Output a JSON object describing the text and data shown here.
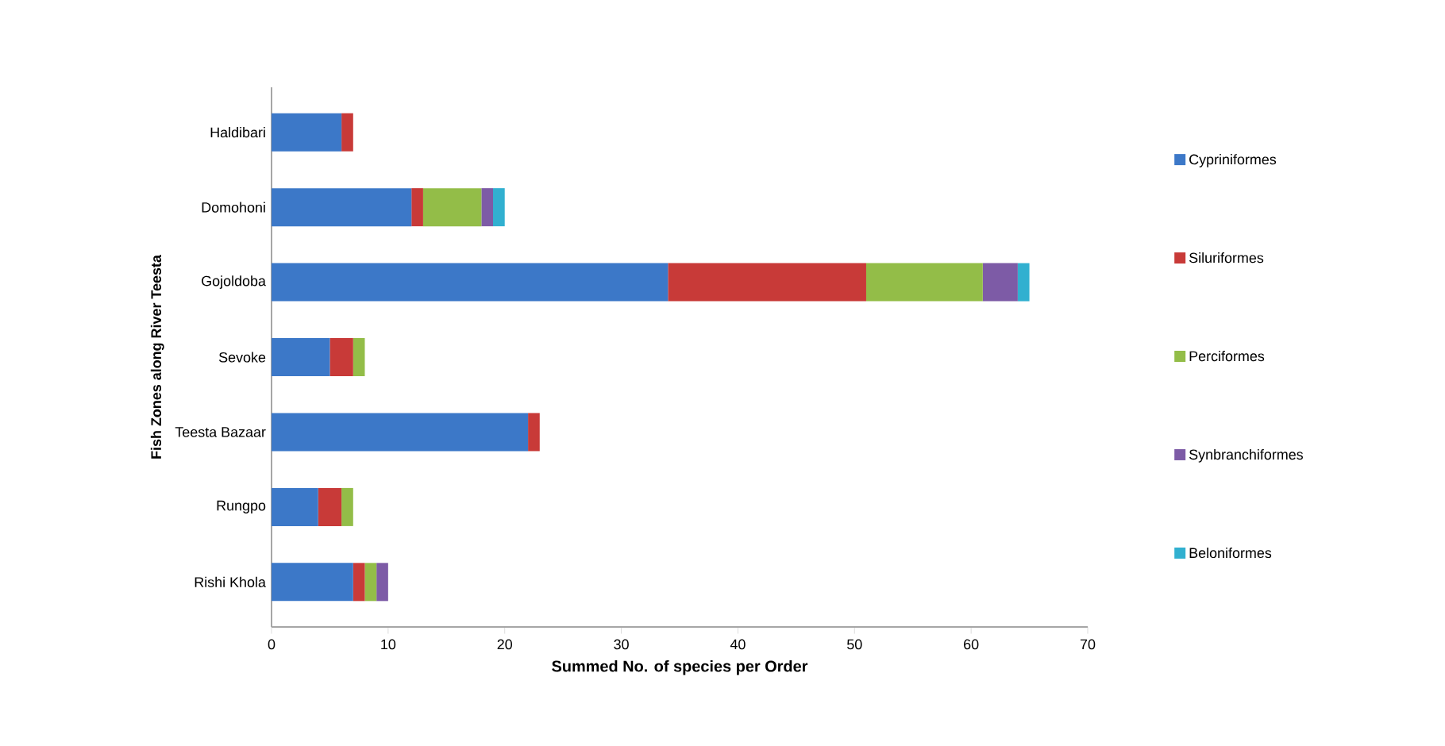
{
  "chart_data": {
    "type": "bar",
    "orientation": "horizontal",
    "stacked": true,
    "categories": [
      "Haldibari",
      "Domohoni",
      "Gojoldoba",
      "Sevoke",
      "Teesta Bazaar",
      "Rungpo",
      "Rishi Khola"
    ],
    "series": [
      {
        "name": "Cypriniformes",
        "color": "#3c78c8",
        "values": [
          6,
          12,
          34,
          5,
          22,
          4,
          7
        ]
      },
      {
        "name": "Siluriformes",
        "color": "#c83a38",
        "values": [
          1,
          1,
          17,
          2,
          1,
          2,
          1
        ]
      },
      {
        "name": "Perciformes",
        "color": "#93bd48",
        "values": [
          0,
          5,
          10,
          1,
          0,
          1,
          1
        ]
      },
      {
        "name": "Synbranchiformes",
        "color": "#7d5ba6",
        "values": [
          0,
          1,
          3,
          0,
          0,
          0,
          1
        ]
      },
      {
        "name": "Beloniformes",
        "color": "#31b0d0",
        "values": [
          0,
          1,
          1,
          0,
          0,
          0,
          0
        ]
      }
    ],
    "xlim": [
      0,
      70
    ],
    "xticks": [
      0,
      10,
      20,
      30,
      40,
      50,
      60,
      70
    ],
    "xlabel": "Summed No. of species per Order",
    "ylabel": "Fish Zones along River Teesta",
    "legend": "right"
  }
}
